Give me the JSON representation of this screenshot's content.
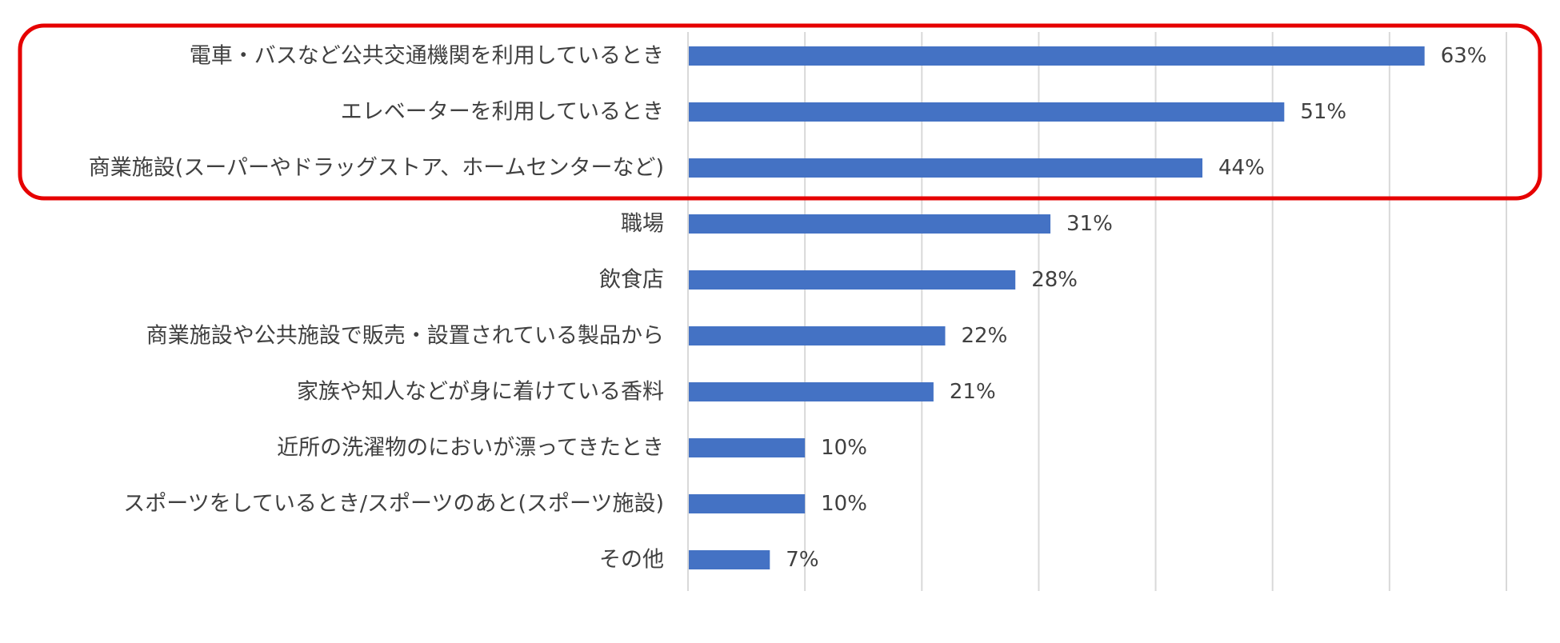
{
  "chart_data": {
    "type": "bar",
    "orientation": "horizontal",
    "categories": [
      "電車・バスなど公共交通機関を利用しているとき",
      "エレベーターを利用しているとき",
      "商業施設(スーパーやドラッグストア、ホームセンターなど)",
      "職場",
      "飲食店",
      "商業施設や公共施設で販売・設置されている製品から",
      "家族や知人などが身に着けている香料",
      "近所の洗濯物のにおいが漂ってきたとき",
      "スポーツをしているとき/スポーツのあと(スポーツ施設)",
      "その他"
    ],
    "values": [
      63,
      51,
      44,
      31,
      28,
      22,
      21,
      10,
      10,
      7
    ],
    "value_labels": [
      "63%",
      "51%",
      "44%",
      "31%",
      "28%",
      "22%",
      "21%",
      "10%",
      "10%",
      "7%"
    ],
    "xlim": [
      0,
      70
    ],
    "grid": true,
    "highlighted_categories": [
      0,
      1,
      2
    ],
    "colors": {
      "bar": "#4472C4",
      "grid": "#D9D9D9",
      "text": "#404040",
      "highlight_border": "#E60000"
    }
  }
}
